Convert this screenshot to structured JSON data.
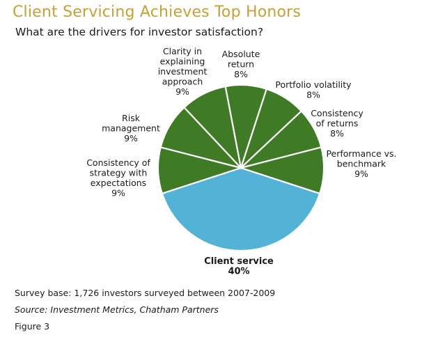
{
  "title": "Client Servicing Achieves Top Honors",
  "subtitle": "What are the drivers for investor satisfaction?",
  "chart_data": {
    "type": "pie",
    "title": "What are the drivers for investor satisfaction?",
    "slices": [
      {
        "label": [
          "Client service"
        ],
        "value": 40,
        "display": "40%",
        "color": "#53b3d6",
        "bold": true
      },
      {
        "label": [
          "Consistency of",
          "strategy with",
          "expectations"
        ],
        "value": 9,
        "display": "9%",
        "color": "#3f7a25"
      },
      {
        "label": [
          "Risk",
          "management"
        ],
        "value": 9,
        "display": "9%",
        "color": "#3f7a25"
      },
      {
        "label": [
          "Clarity in",
          "explaining",
          "investment",
          "approach"
        ],
        "value": 9,
        "display": "9%",
        "color": "#3f7a25"
      },
      {
        "label": [
          "Absolute",
          "return"
        ],
        "value": 8,
        "display": "8%",
        "color": "#3f7a25"
      },
      {
        "label": [
          "Portfolio volatility"
        ],
        "value": 8,
        "display": "8%",
        "color": "#3f7a25"
      },
      {
        "label": [
          "Consistency",
          "of returns"
        ],
        "value": 8,
        "display": "8%",
        "color": "#3f7a25"
      },
      {
        "label": [
          "Performance vs.",
          "benchmark"
        ],
        "value": 9,
        "display": "9%",
        "color": "#3f7a25"
      }
    ]
  },
  "footer": {
    "note": "Survey base: 1,726 investors surveyed between 2007-2009",
    "source": "Source: Investment Metrics, Chatham Partners",
    "figure": "Figure 3"
  },
  "colors": {
    "title": "#c9a032",
    "green": "#3f7a25",
    "blue": "#53b3d6"
  }
}
